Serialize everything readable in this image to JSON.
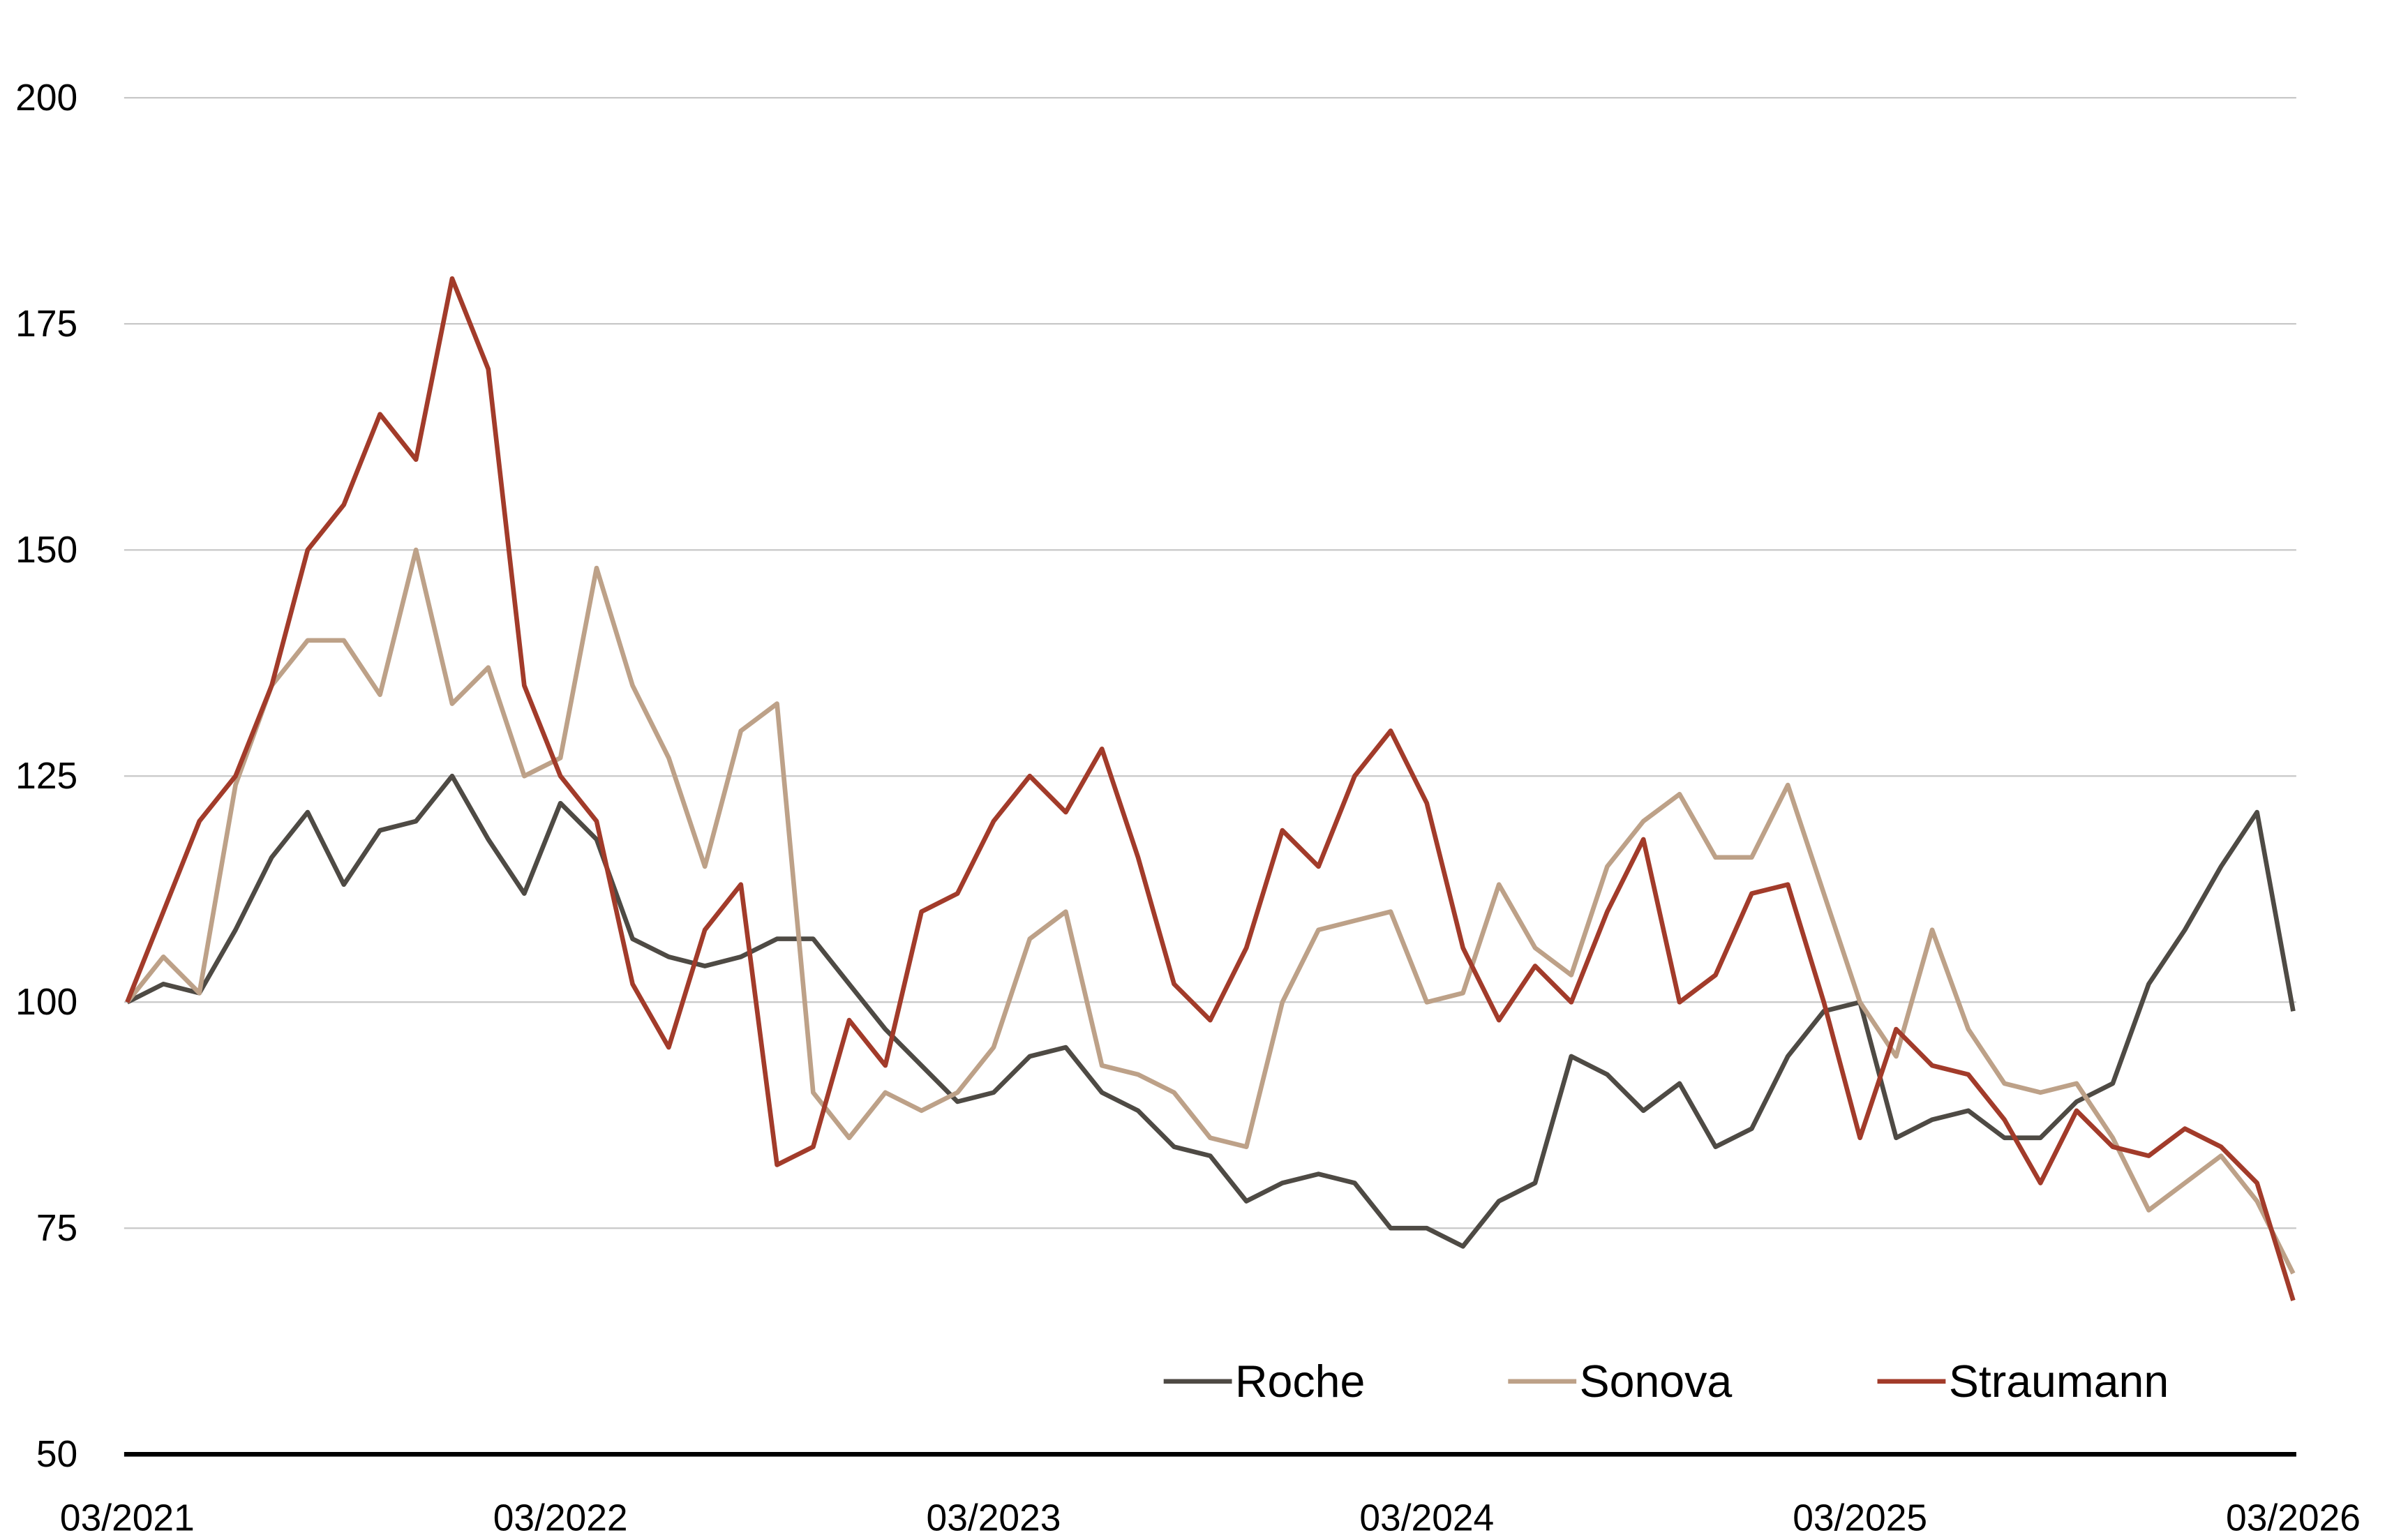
{
  "chart_data": {
    "type": "line",
    "title": "",
    "xlabel": "",
    "ylabel": "",
    "ylim": [
      50,
      200
    ],
    "yticks": [
      50,
      75,
      100,
      125,
      150,
      175,
      200
    ],
    "ytick_labels": [
      "50",
      "75",
      "100",
      "125",
      "150",
      "175",
      "200"
    ],
    "xtick_labels": [
      "03/2021",
      "03/2022",
      "03/2023",
      "03/2024",
      "03/2025",
      "03/2026"
    ],
    "x_months_from_start": [
      0,
      1,
      2,
      3,
      4,
      5,
      6,
      7,
      8,
      9,
      10,
      11,
      12,
      13,
      14,
      15,
      16,
      17,
      18,
      19,
      20,
      21,
      22,
      23,
      24,
      25,
      26,
      27,
      28,
      29,
      30,
      31,
      32,
      33,
      34,
      35,
      36,
      37,
      38,
      39,
      40,
      41,
      42,
      43,
      44,
      45,
      46,
      47,
      48,
      49,
      50,
      51,
      52,
      53,
      54,
      55,
      56,
      57,
      58,
      59,
      60
    ],
    "grid": true,
    "legend_position": "bottom-right",
    "series": [
      {
        "name": "Roche",
        "color": "#4e4a44",
        "values": [
          100,
          102,
          101,
          108,
          116,
          121,
          113,
          119,
          120,
          125,
          118,
          112,
          122,
          118,
          107,
          105,
          104,
          105,
          107,
          107,
          102,
          97,
          93,
          89,
          90,
          94,
          95,
          90,
          88,
          84,
          83,
          78,
          80,
          81,
          80,
          75,
          75,
          73,
          78,
          80,
          94,
          92,
          88,
          91,
          84,
          86,
          94,
          99,
          100,
          85,
          87,
          88,
          85,
          85,
          89,
          91,
          102,
          108,
          115,
          121,
          99
        ]
      },
      {
        "name": "Sonova",
        "color": "#bda188",
        "values": [
          100,
          105,
          101,
          124,
          135,
          140,
          140,
          134,
          150,
          133,
          137,
          125,
          127,
          148,
          135,
          127,
          115,
          130,
          133,
          90,
          85,
          90,
          88,
          90,
          95,
          107,
          110,
          93,
          92,
          90,
          85,
          84,
          100,
          108,
          109,
          110,
          100,
          101,
          113,
          106,
          103,
          115,
          120,
          123,
          116,
          116,
          124,
          112,
          100,
          94,
          108,
          97,
          91,
          90,
          91,
          85,
          77,
          80,
          83,
          78,
          70
        ]
      },
      {
        "name": "Straumann",
        "color": "#a23b2a",
        "values": [
          100,
          110,
          120,
          125,
          135,
          150,
          155,
          165,
          160,
          180,
          170,
          135,
          125,
          120,
          102,
          95,
          108,
          113,
          82,
          84,
          98,
          93,
          110,
          112,
          120,
          125,
          121,
          128,
          116,
          102,
          98,
          106,
          119,
          115,
          125,
          130,
          122,
          106,
          98,
          104,
          100,
          110,
          118,
          100,
          103,
          112,
          113,
          100,
          85,
          97,
          93,
          92,
          87,
          80,
          88,
          84,
          83,
          86,
          84,
          80,
          67
        ]
      }
    ]
  }
}
